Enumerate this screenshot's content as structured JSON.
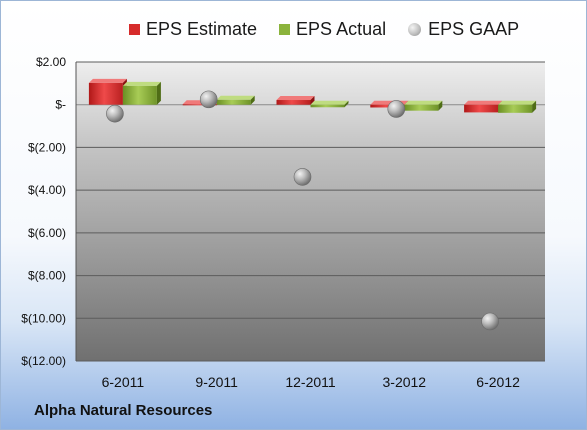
{
  "chart_data": {
    "type": "bar",
    "title": "",
    "xlabel": "",
    "ylabel": "",
    "categories": [
      "6-2011",
      "9-2011",
      "12-2011",
      "3-2012",
      "6-2012"
    ],
    "series": [
      {
        "name": "EPS Estimate",
        "type": "bar",
        "color": "#d62b2b",
        "values": [
          1.02,
          0.02,
          0.22,
          -0.13,
          -0.36
        ]
      },
      {
        "name": "EPS Actual",
        "type": "bar",
        "color": "#8bb33c",
        "values": [
          0.88,
          0.23,
          -0.12,
          -0.28,
          -0.38
        ]
      },
      {
        "name": "EPS GAAP",
        "type": "scatter",
        "color": "#b5b5b5",
        "values": [
          -0.42,
          0.25,
          -3.38,
          -0.2,
          -10.15
        ]
      }
    ],
    "ylim": [
      -12,
      2
    ],
    "yticks": [
      2,
      0,
      -2,
      -4,
      -6,
      -8,
      -10,
      -12
    ],
    "ytick_labels": [
      "$2.00",
      "$-",
      "$(2.00)",
      "$(4.00)",
      "$(6.00)",
      "$(8.00)",
      "$(10.00)",
      "$(12.00)"
    ],
    "grid": true,
    "legend_position": "top"
  },
  "footer": {
    "company": "Alpha Natural Resources"
  }
}
